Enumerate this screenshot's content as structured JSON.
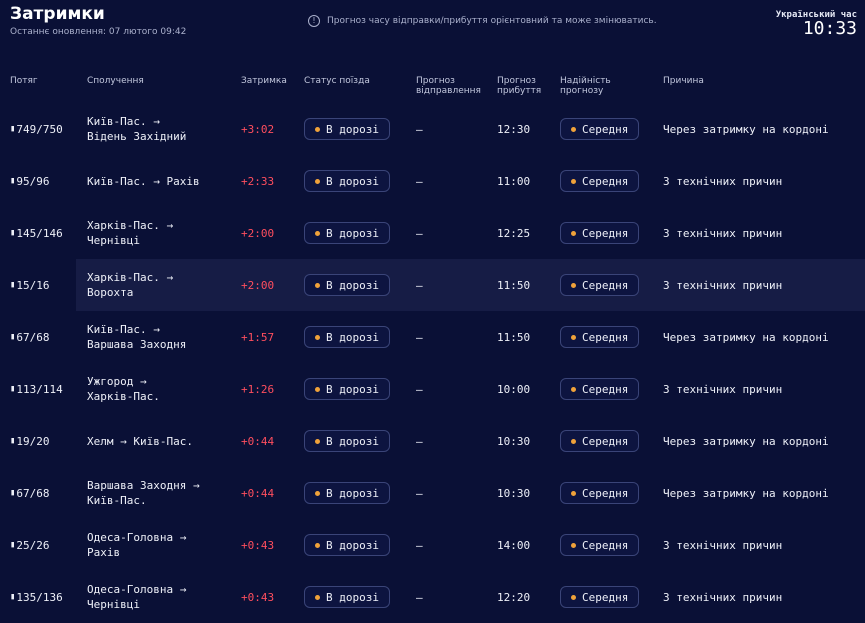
{
  "header": {
    "title": "Затримки",
    "updated": "Останнє оновлення: 07 лютого 09:42",
    "notice": "Прогноз часу відправки/прибуття орієнтовний та може змінюватись.",
    "clock_label": "Український час",
    "clock_time": "10:33"
  },
  "columns": {
    "train": "Потяг",
    "route": "Сполучення",
    "delay": "Затримка",
    "status": "Статус поїзда",
    "dep": "Прогноз відправлення",
    "arr": "Прогноз прибуття",
    "reli": "Надійність прогнозу",
    "reason": "Причина"
  },
  "rows": [
    {
      "train": "749/750",
      "from": "Київ-Пас. →",
      "to": "Відень Західний",
      "delay": "+3:02",
      "status": "В дорозі",
      "dep": "—",
      "arr": "12:30",
      "reli": "Середня",
      "reason": "Через затримку на кордоні"
    },
    {
      "train": "95/96",
      "from": "Київ-Пас. → Рахів",
      "to": "",
      "delay": "+2:33",
      "status": "В дорозі",
      "dep": "—",
      "arr": "11:00",
      "reli": "Середня",
      "reason": "З технічних причин"
    },
    {
      "train": "145/146",
      "from": "Харків-Пас. →",
      "to": "Чернівці",
      "delay": "+2:00",
      "status": "В дорозі",
      "dep": "—",
      "arr": "12:25",
      "reli": "Середня",
      "reason": "З технічних причин"
    },
    {
      "train": "15/16",
      "from": "Харків-Пас. →",
      "to": "Ворохта",
      "delay": "+2:00",
      "status": "В дорозі",
      "dep": "—",
      "arr": "11:50",
      "reli": "Середня",
      "reason": "З технічних причин"
    },
    {
      "train": "67/68",
      "from": "Київ-Пас. →",
      "to": "Варшава Заходня",
      "delay": "+1:57",
      "status": "В дорозі",
      "dep": "—",
      "arr": "11:50",
      "reli": "Середня",
      "reason": "Через затримку на кордоні"
    },
    {
      "train": "113/114",
      "from": "Ужгород →",
      "to": "Харків-Пас.",
      "delay": "+1:26",
      "status": "В дорозі",
      "dep": "—",
      "arr": "10:00",
      "reli": "Середня",
      "reason": "З технічних причин"
    },
    {
      "train": "19/20",
      "from": "Хелм → Київ-Пас.",
      "to": "",
      "delay": "+0:44",
      "status": "В дорозі",
      "dep": "—",
      "arr": "10:30",
      "reli": "Середня",
      "reason": "Через затримку на кордоні"
    },
    {
      "train": "67/68",
      "from": "Варшава Заходня →",
      "to": "Київ-Пас.",
      "delay": "+0:44",
      "status": "В дорозі",
      "dep": "—",
      "arr": "10:30",
      "reli": "Середня",
      "reason": "Через затримку на кордоні"
    },
    {
      "train": "25/26",
      "from": "Одеса-Головна →",
      "to": "Рахів",
      "delay": "+0:43",
      "status": "В дорозі",
      "dep": "—",
      "arr": "14:00",
      "reli": "Середня",
      "reason": "З технічних причин"
    },
    {
      "train": "135/136",
      "from": "Одеса-Головна →",
      "to": "Чернівці",
      "delay": "+0:43",
      "status": "В дорозі",
      "dep": "—",
      "arr": "12:20",
      "reli": "Середня",
      "reason": "З технічних причин"
    }
  ],
  "colors": {
    "background": "#0a1036",
    "delay": "#ff4e5e",
    "status_dot": "#f0a23a",
    "row_highlight": "#161c45"
  },
  "icons": {
    "train": "train-icon",
    "info": "info-icon"
  }
}
